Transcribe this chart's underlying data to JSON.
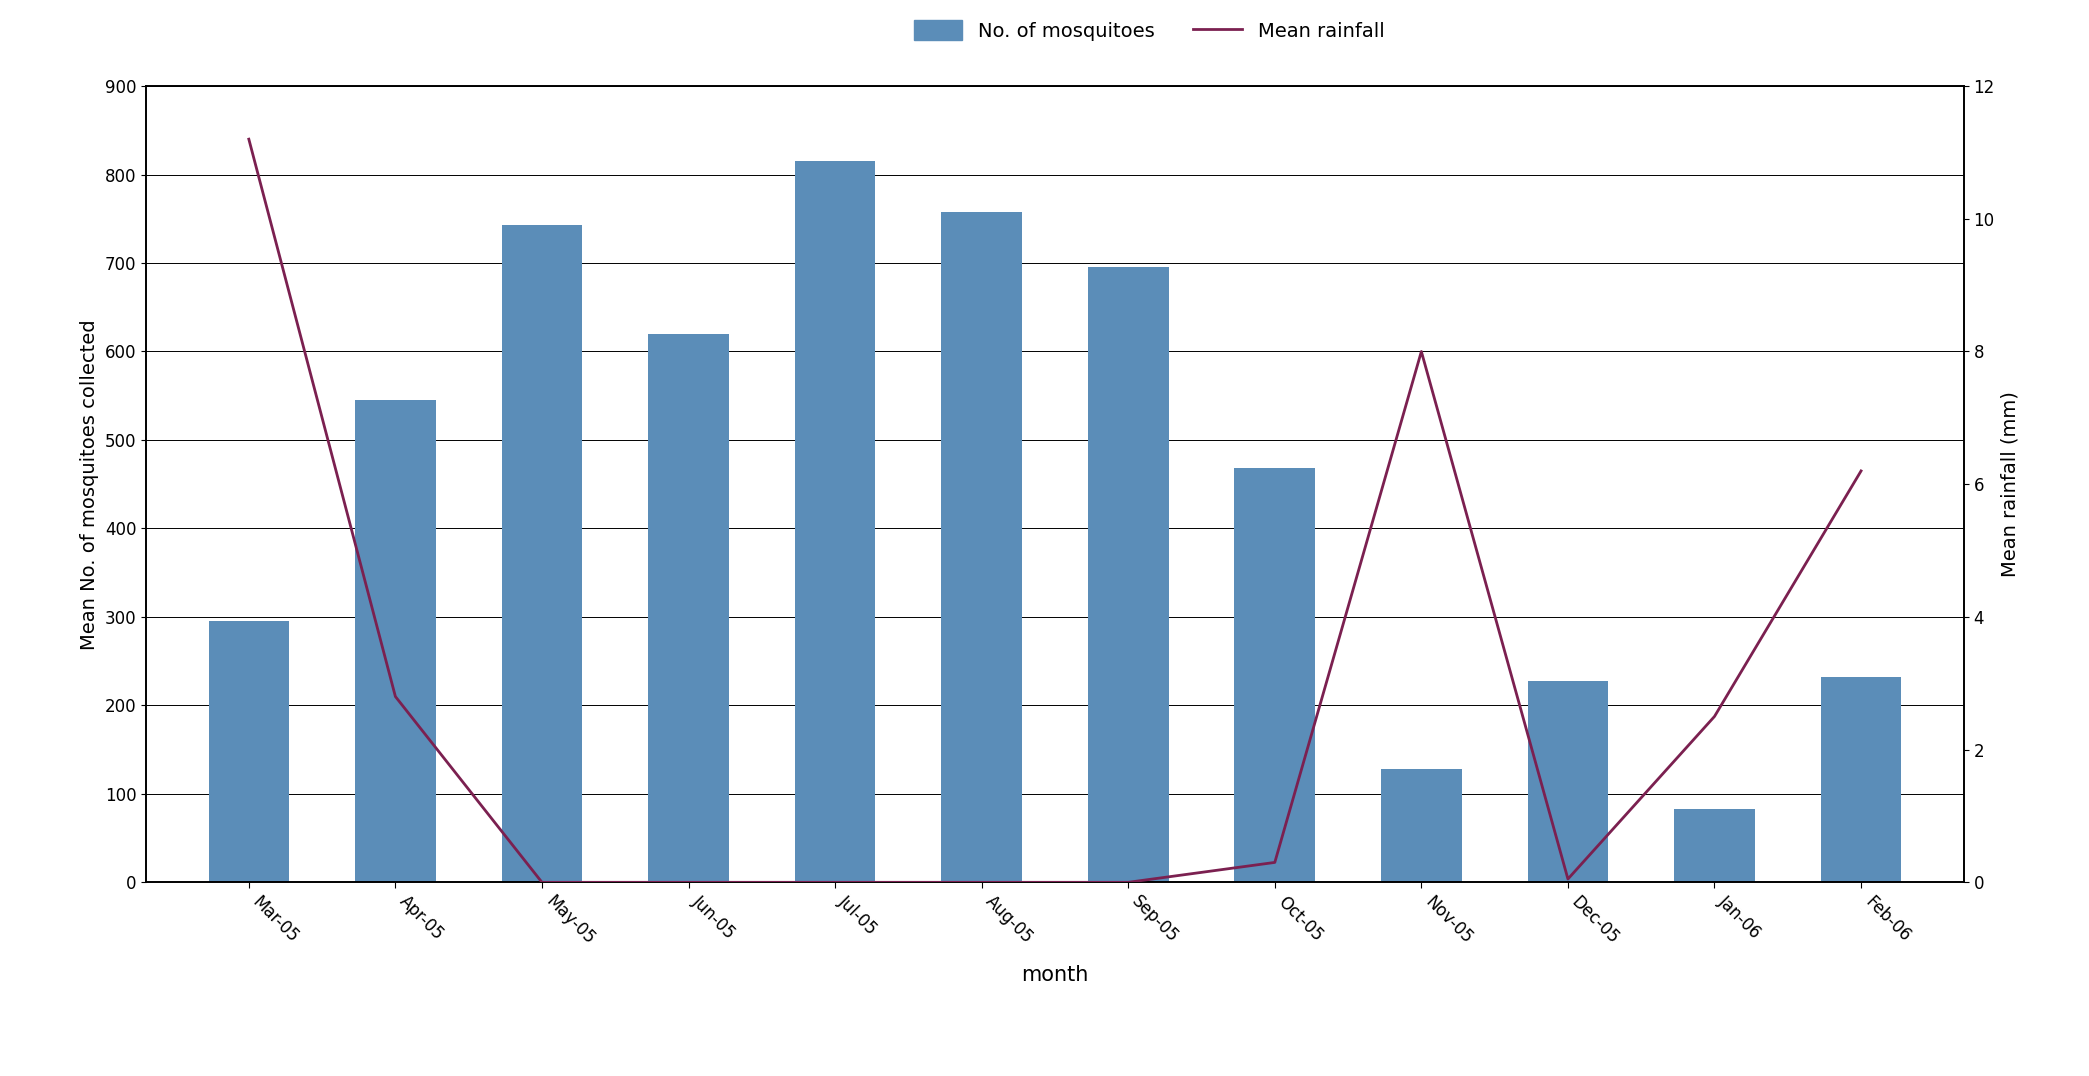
{
  "months": [
    "Mar-05",
    "Apr-05",
    "May-05",
    "Jun-05",
    "Jul-05",
    "Aug-05",
    "Sep-05",
    "Oct-05",
    "Nov-05",
    "Dec-05",
    "Jan-06",
    "Feb-06"
  ],
  "mosquitoes": [
    295,
    545,
    743,
    620,
    815,
    758,
    695,
    468,
    128,
    228,
    83,
    232
  ],
  "rainfall": [
    11.2,
    2.8,
    0.0,
    0.0,
    0.0,
    0.0,
    0.0,
    0.3,
    8.0,
    0.05,
    2.5,
    6.2
  ],
  "bar_color": "#5b8db8",
  "line_color": "#7b2050",
  "bar_label": "No. of mosquitoes",
  "line_label": "Mean rainfall",
  "xlabel": "month",
  "ylabel_left": "Mean No. of mosquitoes collected",
  "ylabel_right": "Mean rainfall (mm)",
  "ylim_left": [
    0,
    900
  ],
  "ylim_right": [
    0,
    12
  ],
  "yticks_left": [
    0,
    100,
    200,
    300,
    400,
    500,
    600,
    700,
    800,
    900
  ],
  "yticks_right": [
    0,
    2,
    4,
    6,
    8,
    10,
    12
  ],
  "background_color": "#ffffff",
  "axis_fontsize": 14,
  "tick_fontsize": 12,
  "legend_fontsize": 14,
  "bar_width": 0.55
}
